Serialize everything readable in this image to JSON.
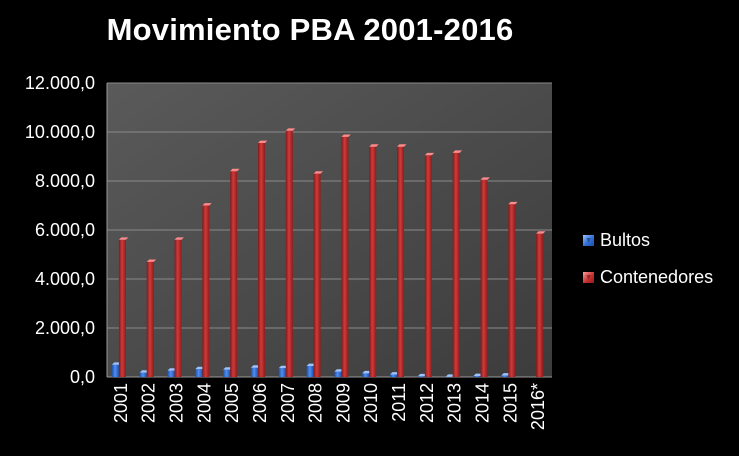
{
  "chart_data": {
    "type": "bar",
    "title": "Movimiento PBA 2001-2016",
    "categories": [
      "2001",
      "2002",
      "2003",
      "2004",
      "2005",
      "2006",
      "2007",
      "2008",
      "2009",
      "2010",
      "2011",
      "2012",
      "2013",
      "2014",
      "2015",
      "2016*"
    ],
    "series": [
      {
        "name": "Bultos",
        "color": "#3a7be0",
        "values": [
          500,
          180,
          260,
          320,
          300,
          380,
          360,
          450,
          220,
          150,
          100,
          30,
          10,
          40,
          60,
          0
        ]
      },
      {
        "name": "Contenedores",
        "color": "#c0302f",
        "values": [
          5600,
          4700,
          5600,
          7000,
          8400,
          9550,
          10050,
          8300,
          9800,
          9400,
          9400,
          9050,
          9150,
          8050,
          7050,
          5850
        ]
      }
    ],
    "yticks": [
      "0,0",
      "2.000,0",
      "4.000,0",
      "6.000,0",
      "8.000,0",
      "10.000,0",
      "12.000,0"
    ],
    "ylim": [
      0,
      12000
    ],
    "grid": true,
    "legend_position": "right",
    "xlabel": "",
    "ylabel": ""
  }
}
